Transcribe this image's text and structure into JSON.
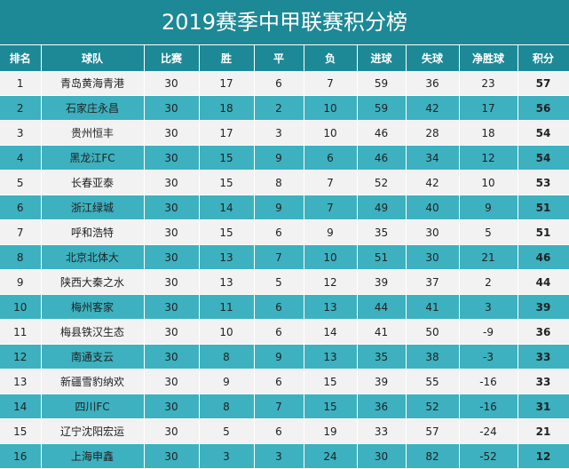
{
  "title": "2019赛季中甲联赛积分榜",
  "headers": [
    "排名",
    "球队",
    "比赛",
    "胜",
    "平",
    "负",
    "进球",
    "失球",
    "净胜球",
    "积分"
  ],
  "rows": [
    [
      "1",
      "青岛黄海青港",
      "30",
      "17",
      "6",
      "7",
      "59",
      "36",
      "23",
      "57"
    ],
    [
      "2",
      "石家庄永昌",
      "30",
      "18",
      "2",
      "10",
      "59",
      "42",
      "17",
      "56"
    ],
    [
      "3",
      "贵州恒丰",
      "30",
      "17",
      "3",
      "10",
      "46",
      "28",
      "18",
      "54"
    ],
    [
      "4",
      "黑龙江FC",
      "30",
      "15",
      "9",
      "6",
      "46",
      "34",
      "12",
      "54"
    ],
    [
      "5",
      "长春亚泰",
      "30",
      "15",
      "8",
      "7",
      "52",
      "42",
      "10",
      "53"
    ],
    [
      "6",
      "浙江绿城",
      "30",
      "14",
      "9",
      "7",
      "49",
      "40",
      "9",
      "51"
    ],
    [
      "7",
      "呼和浩特",
      "30",
      "15",
      "6",
      "9",
      "35",
      "30",
      "5",
      "51"
    ],
    [
      "8",
      "北京北体大",
      "30",
      "13",
      "7",
      "10",
      "51",
      "30",
      "21",
      "46"
    ],
    [
      "9",
      "陕西大秦之水",
      "30",
      "13",
      "5",
      "12",
      "39",
      "37",
      "2",
      "44"
    ],
    [
      "10",
      "梅州客家",
      "30",
      "11",
      "6",
      "13",
      "44",
      "41",
      "3",
      "39"
    ],
    [
      "11",
      "梅县铁汉生态",
      "30",
      "10",
      "6",
      "14",
      "41",
      "50",
      "-9",
      "36"
    ],
    [
      "12",
      "南通支云",
      "30",
      "8",
      "9",
      "13",
      "35",
      "38",
      "-3",
      "33"
    ],
    [
      "13",
      "新疆雪豹纳欢",
      "30",
      "9",
      "6",
      "15",
      "39",
      "55",
      "-16",
      "33"
    ],
    [
      "14",
      "四川FC",
      "30",
      "8",
      "7",
      "15",
      "36",
      "52",
      "-16",
      "31"
    ],
    [
      "15",
      "辽宁沈阳宏运",
      "30",
      "5",
      "6",
      "19",
      "33",
      "57",
      "-24",
      "21"
    ],
    [
      "16",
      "上海申鑫",
      "30",
      "3",
      "3",
      "24",
      "30",
      "82",
      "-52",
      "12"
    ]
  ],
  "colors": {
    "header": "#1d8996",
    "row_even": "#3db1bf",
    "row_odd": "#f2f2f2"
  }
}
